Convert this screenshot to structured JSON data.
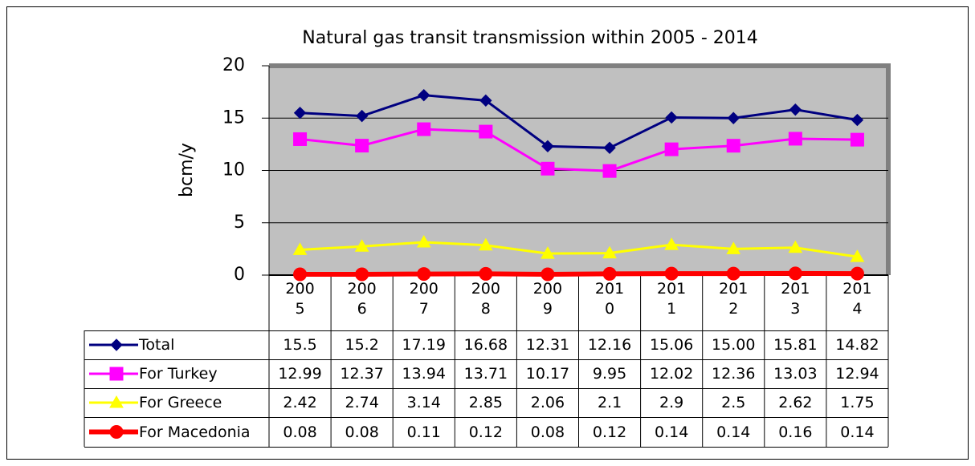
{
  "chart_data": {
    "type": "line",
    "title": "Natural gas transit transmission within 2005 - 2014",
    "y_label": "bcm/y",
    "categories": [
      "2005",
      "2006",
      "2007",
      "2008",
      "2009",
      "2010",
      "2011",
      "2012",
      "2013",
      "2014"
    ],
    "series": [
      {
        "name": "Total",
        "color": "#000080",
        "marker": "diamond",
        "values": [
          15.5,
          15.2,
          17.19,
          16.68,
          12.31,
          12.16,
          15.06,
          15.0,
          15.81,
          14.82
        ],
        "value_labels": [
          "15.5",
          "15.2",
          "17.19",
          "16.68",
          "12.31",
          "12.16",
          "15.06",
          "15.00",
          "15.81",
          "14.82"
        ]
      },
      {
        "name": "For Turkey",
        "color": "#ff00ff",
        "marker": "square",
        "values": [
          12.99,
          12.37,
          13.94,
          13.71,
          10.17,
          9.95,
          12.02,
          12.36,
          13.03,
          12.94
        ]
      },
      {
        "name": "For Greece",
        "color": "#ffff00",
        "marker": "triangle",
        "values": [
          2.42,
          2.74,
          3.14,
          2.85,
          2.06,
          2.1,
          2.9,
          2.5,
          2.62,
          1.75
        ]
      },
      {
        "name": "For Macedonia",
        "color": "#ff0000",
        "marker": "circle",
        "values": [
          0.08,
          0.08,
          0.11,
          0.12,
          0.08,
          0.12,
          0.14,
          0.14,
          0.16,
          0.14
        ]
      }
    ],
    "ylim": [
      0,
      20
    ],
    "yticks": [
      0,
      5,
      10,
      15,
      20
    ],
    "grid": true
  }
}
